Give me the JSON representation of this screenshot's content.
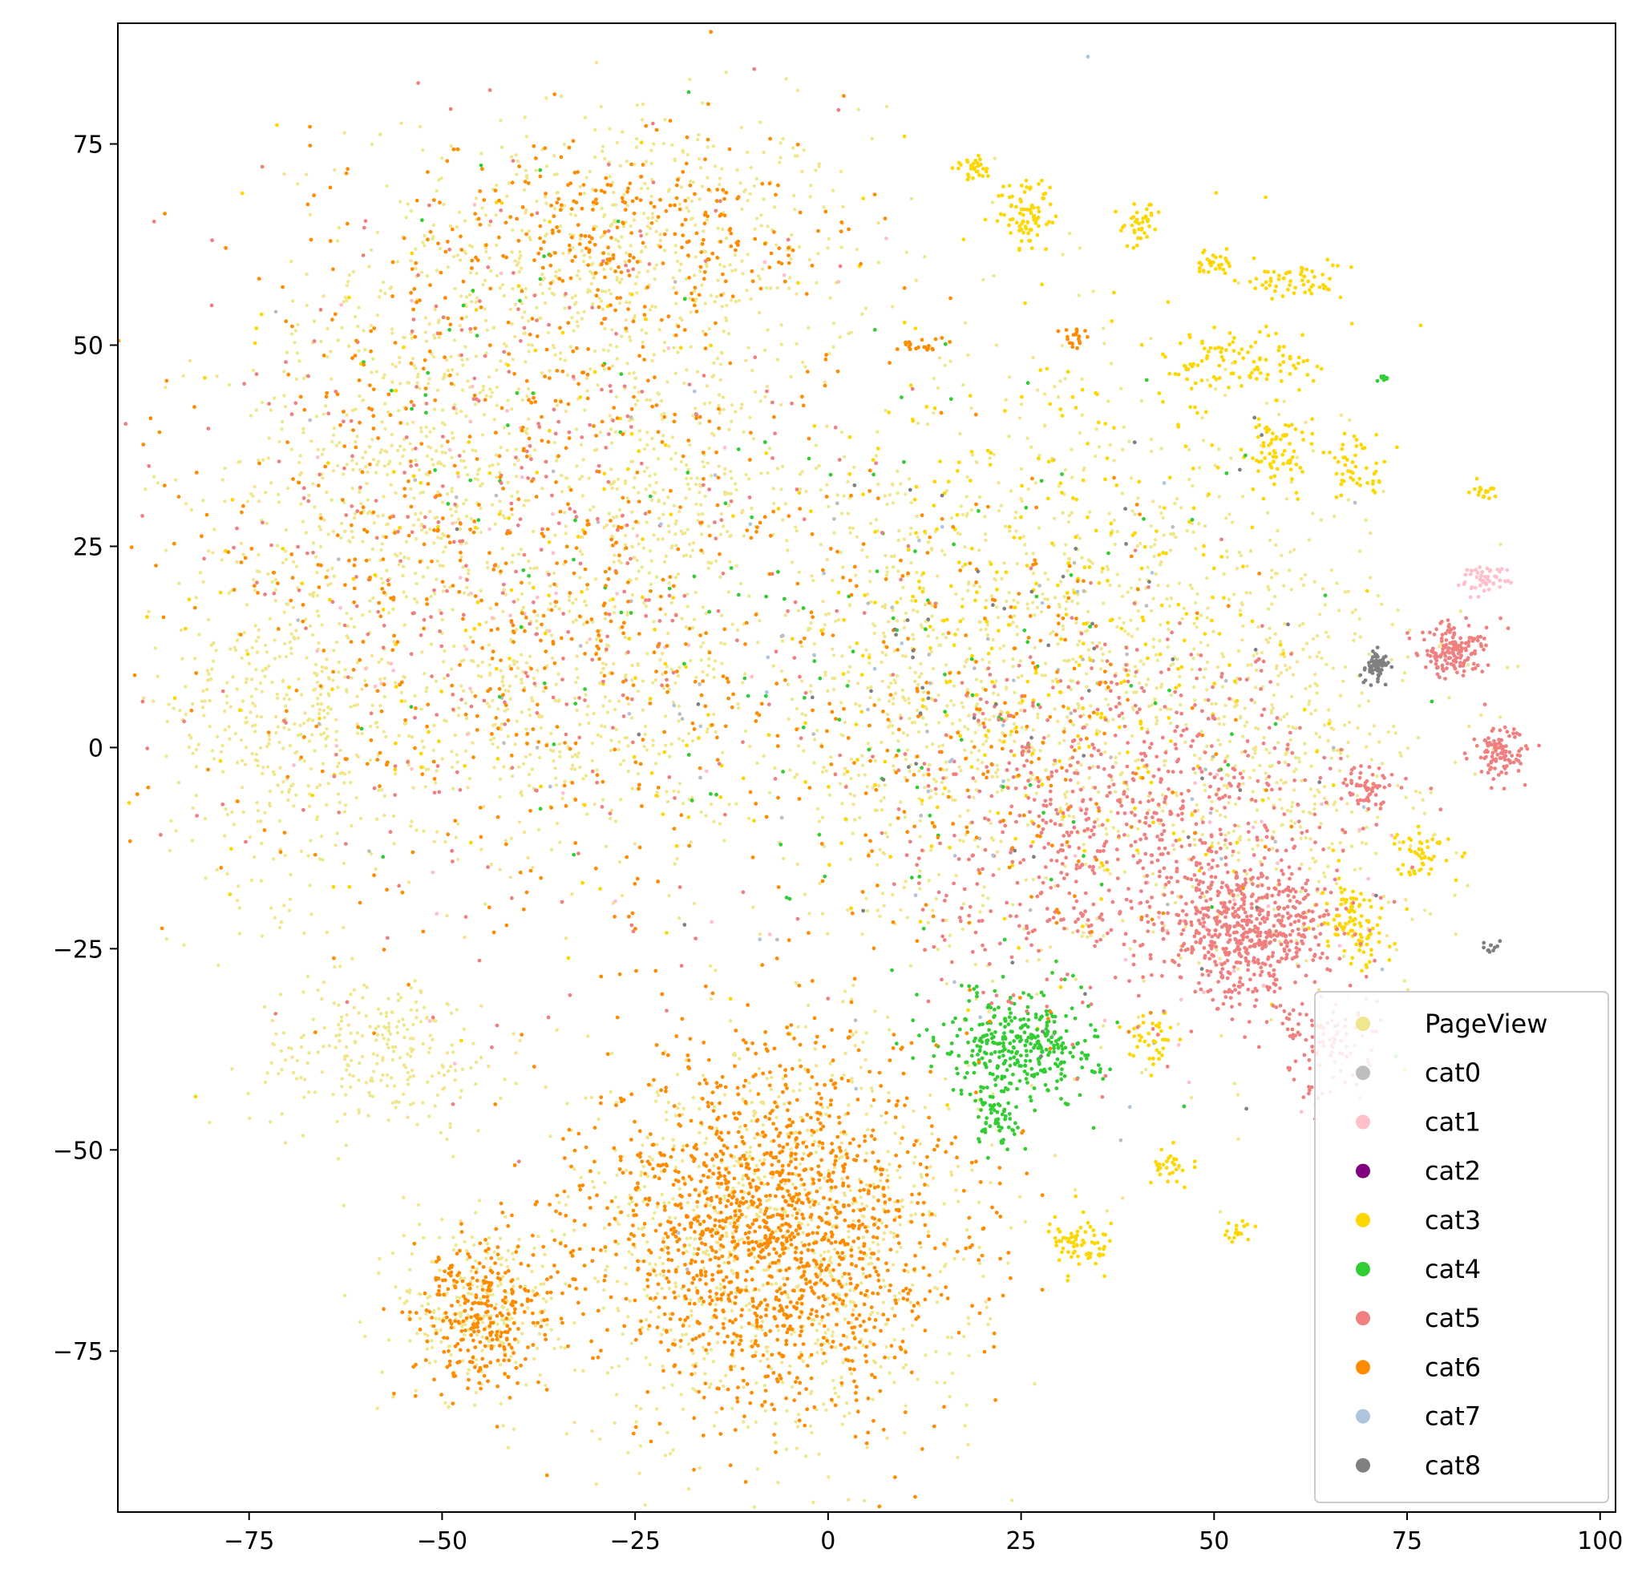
{
  "chart_data": {
    "type": "scatter",
    "title": "",
    "xlabel": "",
    "ylabel": "",
    "xlim": [
      -92,
      102
    ],
    "ylim": [
      -95,
      90
    ],
    "xticks": [
      -75,
      -50,
      -25,
      0,
      25,
      50,
      75,
      100
    ],
    "yticks": [
      -75,
      -50,
      -25,
      0,
      25,
      50,
      75
    ],
    "xtick_labels": [
      "−75",
      "−50",
      "−25",
      "0",
      "25",
      "50",
      "75",
      "100"
    ],
    "ytick_labels": [
      "−75",
      "−50",
      "−25",
      "0",
      "25",
      "50",
      "75"
    ],
    "grid": false,
    "legend_position": "bottom-right",
    "series": [
      {
        "name": "PageView",
        "color": "#F0E68C",
        "clusters": [
          {
            "cx": -28,
            "cy": 60,
            "rx": 30,
            "ry": 18,
            "n": 700
          },
          {
            "cx": -55,
            "cy": 35,
            "rx": 22,
            "ry": 18,
            "n": 450
          },
          {
            "cx": -70,
            "cy": 5,
            "rx": 14,
            "ry": 22,
            "n": 450
          },
          {
            "cx": -35,
            "cy": 5,
            "rx": 22,
            "ry": 18,
            "n": 450
          },
          {
            "cx": -58,
            "cy": -38,
            "rx": 15,
            "ry": 9,
            "n": 250
          },
          {
            "cx": -20,
            "cy": 30,
            "rx": 18,
            "ry": 15,
            "n": 300
          },
          {
            "cx": 10,
            "cy": 5,
            "rx": 18,
            "ry": 25,
            "n": 400
          },
          {
            "cx": 35,
            "cy": 10,
            "rx": 28,
            "ry": 35,
            "n": 800
          },
          {
            "cx": -7,
            "cy": -62,
            "rx": 24,
            "ry": 23,
            "n": 1000
          },
          {
            "cx": -45,
            "cy": -70,
            "rx": 10,
            "ry": 11,
            "n": 250
          },
          {
            "cx": 60,
            "cy": 0,
            "rx": 18,
            "ry": 25,
            "n": 400
          }
        ]
      },
      {
        "name": "cat0",
        "color": "#BEBEBE",
        "clusters": [
          {
            "cx": 30,
            "cy": 0,
            "rx": 40,
            "ry": 45,
            "n": 40
          },
          {
            "cx": -40,
            "cy": 20,
            "rx": 40,
            "ry": 45,
            "n": 30
          }
        ]
      },
      {
        "name": "cat1",
        "color": "#FFC0CB",
        "clusters": [
          {
            "cx": 85,
            "cy": 21,
            "rx": 3,
            "ry": 1.5,
            "n": 50
          },
          {
            "cx": -40,
            "cy": 20,
            "rx": 40,
            "ry": 45,
            "n": 60
          },
          {
            "cx": 50,
            "cy": -20,
            "rx": 20,
            "ry": 20,
            "n": 40
          }
        ]
      },
      {
        "name": "cat2",
        "color": "#800080",
        "clusters": []
      },
      {
        "name": "cat3",
        "color": "#FFD700",
        "clusters": [
          {
            "cx": 26,
            "cy": 66,
            "rx": 3.5,
            "ry": 4,
            "n": 80
          },
          {
            "cx": 19,
            "cy": 72,
            "rx": 2,
            "ry": 1.5,
            "n": 30
          },
          {
            "cx": 40,
            "cy": 65,
            "rx": 2.5,
            "ry": 2.5,
            "n": 40
          },
          {
            "cx": 50,
            "cy": 60,
            "rx": 2,
            "ry": 2,
            "n": 30
          },
          {
            "cx": 60,
            "cy": 58,
            "rx": 6,
            "ry": 2,
            "n": 60
          },
          {
            "cx": 55,
            "cy": 48,
            "rx": 10,
            "ry": 4,
            "n": 100
          },
          {
            "cx": 58,
            "cy": 37,
            "rx": 4,
            "ry": 4,
            "n": 70
          },
          {
            "cx": 68,
            "cy": 35,
            "rx": 4,
            "ry": 4,
            "n": 50
          },
          {
            "cx": 33,
            "cy": -62,
            "rx": 4,
            "ry": 3,
            "n": 70
          },
          {
            "cx": 44,
            "cy": -52,
            "rx": 2,
            "ry": 2,
            "n": 30
          },
          {
            "cx": 68,
            "cy": -22,
            "rx": 4,
            "ry": 5,
            "n": 100
          },
          {
            "cx": 77,
            "cy": -13,
            "rx": 3,
            "ry": 3,
            "n": 50
          },
          {
            "cx": 42,
            "cy": -36,
            "rx": 2.5,
            "ry": 3,
            "n": 40
          },
          {
            "cx": 30,
            "cy": 15,
            "rx": 30,
            "ry": 35,
            "n": 350
          },
          {
            "cx": -40,
            "cy": 20,
            "rx": 40,
            "ry": 45,
            "n": 150
          },
          {
            "cx": 53,
            "cy": -60,
            "rx": 1.5,
            "ry": 1.5,
            "n": 20
          },
          {
            "cx": 85,
            "cy": 32,
            "rx": 1.5,
            "ry": 1.5,
            "n": 20
          }
        ]
      },
      {
        "name": "cat4",
        "color": "#32CD32",
        "clusters": [
          {
            "cx": 25,
            "cy": -37,
            "rx": 9,
            "ry": 6,
            "n": 350
          },
          {
            "cx": 22,
            "cy": -46,
            "rx": 4,
            "ry": 4,
            "n": 60
          },
          {
            "cx": 20,
            "cy": 10,
            "rx": 40,
            "ry": 35,
            "n": 100
          },
          {
            "cx": -35,
            "cy": 30,
            "rx": 35,
            "ry": 40,
            "n": 60
          },
          {
            "cx": 72,
            "cy": 46,
            "rx": 0.5,
            "ry": 0.5,
            "n": 10
          }
        ]
      },
      {
        "name": "cat5",
        "color": "#F08080",
        "clusters": [
          {
            "cx": 55,
            "cy": -23,
            "rx": 9,
            "ry": 7,
            "n": 500
          },
          {
            "cx": 81,
            "cy": 12,
            "rx": 4,
            "ry": 3,
            "n": 150
          },
          {
            "cx": 87,
            "cy": -1,
            "rx": 3,
            "ry": 3,
            "n": 100
          },
          {
            "cx": 40,
            "cy": -10,
            "rx": 25,
            "ry": 20,
            "n": 800
          },
          {
            "cx": -40,
            "cy": 25,
            "rx": 40,
            "ry": 45,
            "n": 400
          },
          {
            "cx": 70,
            "cy": -5,
            "rx": 3,
            "ry": 3,
            "n": 60
          },
          {
            "cx": 65,
            "cy": -37,
            "rx": 6,
            "ry": 6,
            "n": 100
          }
        ]
      },
      {
        "name": "cat6",
        "color": "#FF8C00",
        "clusters": [
          {
            "cx": -7,
            "cy": -60,
            "rx": 21,
            "ry": 20,
            "n": 1500
          },
          {
            "cx": -45,
            "cy": -70,
            "rx": 8,
            "ry": 9,
            "n": 300
          },
          {
            "cx": -40,
            "cy": 25,
            "rx": 40,
            "ry": 45,
            "n": 700
          },
          {
            "cx": -27,
            "cy": 64,
            "rx": 25,
            "ry": 10,
            "n": 250
          },
          {
            "cx": 20,
            "cy": 0,
            "rx": 30,
            "ry": 30,
            "n": 250
          },
          {
            "cx": 32,
            "cy": 51,
            "rx": 1.5,
            "ry": 1.5,
            "n": 20
          },
          {
            "cx": 12,
            "cy": 50,
            "rx": 3,
            "ry": 1,
            "n": 20
          }
        ]
      },
      {
        "name": "cat7",
        "color": "#B0C4DE",
        "clusters": [
          {
            "cx": 20,
            "cy": 10,
            "rx": 50,
            "ry": 50,
            "n": 40
          }
        ]
      },
      {
        "name": "cat8",
        "color": "#808080",
        "clusters": [
          {
            "cx": 71,
            "cy": 10,
            "rx": 1.5,
            "ry": 1.5,
            "n": 70
          },
          {
            "cx": 86,
            "cy": -25,
            "rx": 1,
            "ry": 1,
            "n": 10
          },
          {
            "cx": 30,
            "cy": 5,
            "rx": 40,
            "ry": 40,
            "n": 60
          }
        ]
      }
    ]
  }
}
